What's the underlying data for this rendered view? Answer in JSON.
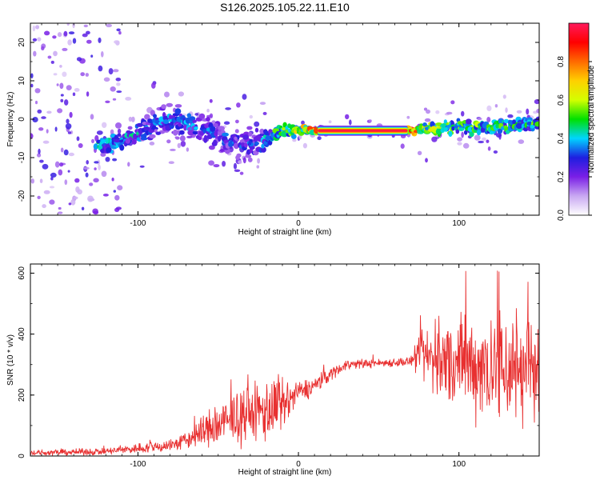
{
  "title": "S126.2025.105.22.11.E10",
  "chart_data": [
    {
      "type": "heatmap",
      "xlabel": "Height of straight line (km)",
      "ylabel": "Frequency (Hz)",
      "xlim": [
        -167,
        150
      ],
      "ylim": [
        -25,
        25
      ],
      "x_ticks": [
        -100,
        0,
        100
      ],
      "y_ticks": [
        -20,
        -10,
        0,
        10,
        20
      ],
      "colorbar": {
        "label": "Normalized spectral amplitude",
        "range": [
          0,
          1
        ],
        "ticks": [
          0.0,
          0.2,
          0.4,
          0.6,
          0.8
        ],
        "colors": [
          "#ffffff",
          "#c9a8f2",
          "#7a1fe6",
          "#1e1ee0",
          "#00d5ff",
          "#00e000",
          "#d4ff00",
          "#ffd000",
          "#ff6a00",
          "#ff0000",
          "#ff1a5c"
        ]
      },
      "ridge": [
        {
          "x": -120,
          "f": -6.5,
          "spread": 1.2,
          "amp": 0.45
        },
        {
          "x": -100,
          "f": -4,
          "spread": 1.8,
          "amp": 0.4
        },
        {
          "x": -90,
          "f": -1,
          "spread": 2.5,
          "amp": 0.35
        },
        {
          "x": -80,
          "f": 0,
          "spread": 3,
          "amp": 0.4
        },
        {
          "x": -70,
          "f": -1,
          "spread": 3,
          "amp": 0.4
        },
        {
          "x": -60,
          "f": -2.5,
          "spread": 2.5,
          "amp": 0.35
        },
        {
          "x": -50,
          "f": -4,
          "spread": 2.5,
          "amp": 0.35
        },
        {
          "x": -40,
          "f": -6,
          "spread": 2.5,
          "amp": 0.35
        },
        {
          "x": -30,
          "f": -7,
          "spread": 2.5,
          "amp": 0.35
        },
        {
          "x": -20,
          "f": -5,
          "spread": 1.5,
          "amp": 0.45
        },
        {
          "x": -10,
          "f": -3,
          "spread": 1,
          "amp": 0.55
        },
        {
          "x": 0,
          "f": -3,
          "spread": 0.8,
          "amp": 0.65
        },
        {
          "x": 10,
          "f": -3,
          "spread": 0.5,
          "amp": 0.8
        },
        {
          "x": 70,
          "f": -3,
          "spread": 0.5,
          "amp": 0.95
        },
        {
          "x": 80,
          "f": -2.5,
          "spread": 1,
          "amp": 0.6
        },
        {
          "x": 100,
          "f": -2,
          "spread": 1.2,
          "amp": 0.55
        },
        {
          "x": 120,
          "f": -2,
          "spread": 1.2,
          "amp": 0.55
        },
        {
          "x": 135,
          "f": -1.5,
          "spread": 1.2,
          "amp": 0.5
        },
        {
          "x": 150,
          "f": -1,
          "spread": 1,
          "amp": 0.5
        }
      ]
    },
    {
      "type": "line",
      "xlabel": "Height of straight line (km)",
      "ylabel": "SNR (10 * v/v)",
      "xlim": [
        -167,
        150
      ],
      "ylim": [
        0,
        630
      ],
      "x_ticks": [
        -100,
        0,
        100
      ],
      "y_ticks": [
        0,
        200,
        400,
        600
      ],
      "color": "#e83030",
      "envelope": [
        {
          "x": -167,
          "base": 10,
          "noise": 8
        },
        {
          "x": -120,
          "base": 15,
          "noise": 10
        },
        {
          "x": -100,
          "base": 25,
          "noise": 15
        },
        {
          "x": -80,
          "base": 35,
          "noise": 20
        },
        {
          "x": -70,
          "base": 50,
          "noise": 25
        },
        {
          "x": -60,
          "base": 80,
          "noise": 50
        },
        {
          "x": -50,
          "base": 100,
          "noise": 70
        },
        {
          "x": -40,
          "base": 120,
          "noise": 70
        },
        {
          "x": -30,
          "base": 140,
          "noise": 80
        },
        {
          "x": -20,
          "base": 150,
          "noise": 100
        },
        {
          "x": -10,
          "base": 160,
          "noise": 80
        },
        {
          "x": 0,
          "base": 210,
          "noise": 30
        },
        {
          "x": 10,
          "base": 230,
          "noise": 30
        },
        {
          "x": 20,
          "base": 270,
          "noise": 20
        },
        {
          "x": 30,
          "base": 300,
          "noise": 15
        },
        {
          "x": 50,
          "base": 305,
          "noise": 12
        },
        {
          "x": 70,
          "base": 310,
          "noise": 15
        },
        {
          "x": 78,
          "base": 330,
          "noise": 80
        },
        {
          "x": 90,
          "base": 310,
          "noise": 130
        },
        {
          "x": 110,
          "base": 300,
          "noise": 150
        },
        {
          "x": 130,
          "base": 290,
          "noise": 190
        },
        {
          "x": 150,
          "base": 300,
          "noise": 150
        }
      ]
    }
  ]
}
